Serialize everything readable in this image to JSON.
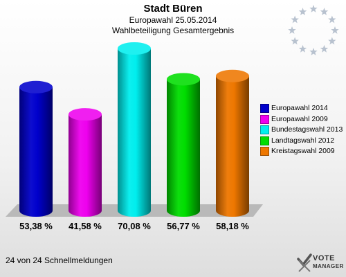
{
  "header": {
    "title": "Stadt Büren",
    "subtitle": "Europawahl 25.05.2014",
    "subtitle2": "Wahlbeteiligung Gesamtergebnis"
  },
  "chart_data": {
    "type": "bar",
    "categories": [
      "Europawahl 2014",
      "Europawahl 2009",
      "Bundestagswahl 2013",
      "Landtagswahl 2012",
      "Kreistagswahl 2009"
    ],
    "values": [
      53.38,
      41.58,
      70.08,
      56.77,
      58.18
    ],
    "value_labels": [
      "53,38 %",
      "41,58 %",
      "70,08 %",
      "56,77 %",
      "58,18 %"
    ],
    "colors": [
      "#0000cc",
      "#ee00ee",
      "#00eeee",
      "#00dd00",
      "#ee7700"
    ],
    "ylim": [
      0,
      70.08
    ],
    "grid": false,
    "legend_position": "right",
    "legend": [
      {
        "label": "Europawahl 2014",
        "color": "#0000cc"
      },
      {
        "label": "Europawahl 2009",
        "color": "#ee00ee"
      },
      {
        "label": "Bundestagswahl 2013",
        "color": "#00eeee"
      },
      {
        "label": "Landtagswahl 2012",
        "color": "#00dd00"
      },
      {
        "label": "Kreistagswahl 2009",
        "color": "#ee7700"
      }
    ]
  },
  "footer": {
    "status": "24 von 24 Schnellmeldungen"
  },
  "brand": {
    "line1": "VOTE",
    "line2": "MANAGER"
  },
  "decoration": {
    "icon": "eu-stars-icon"
  }
}
